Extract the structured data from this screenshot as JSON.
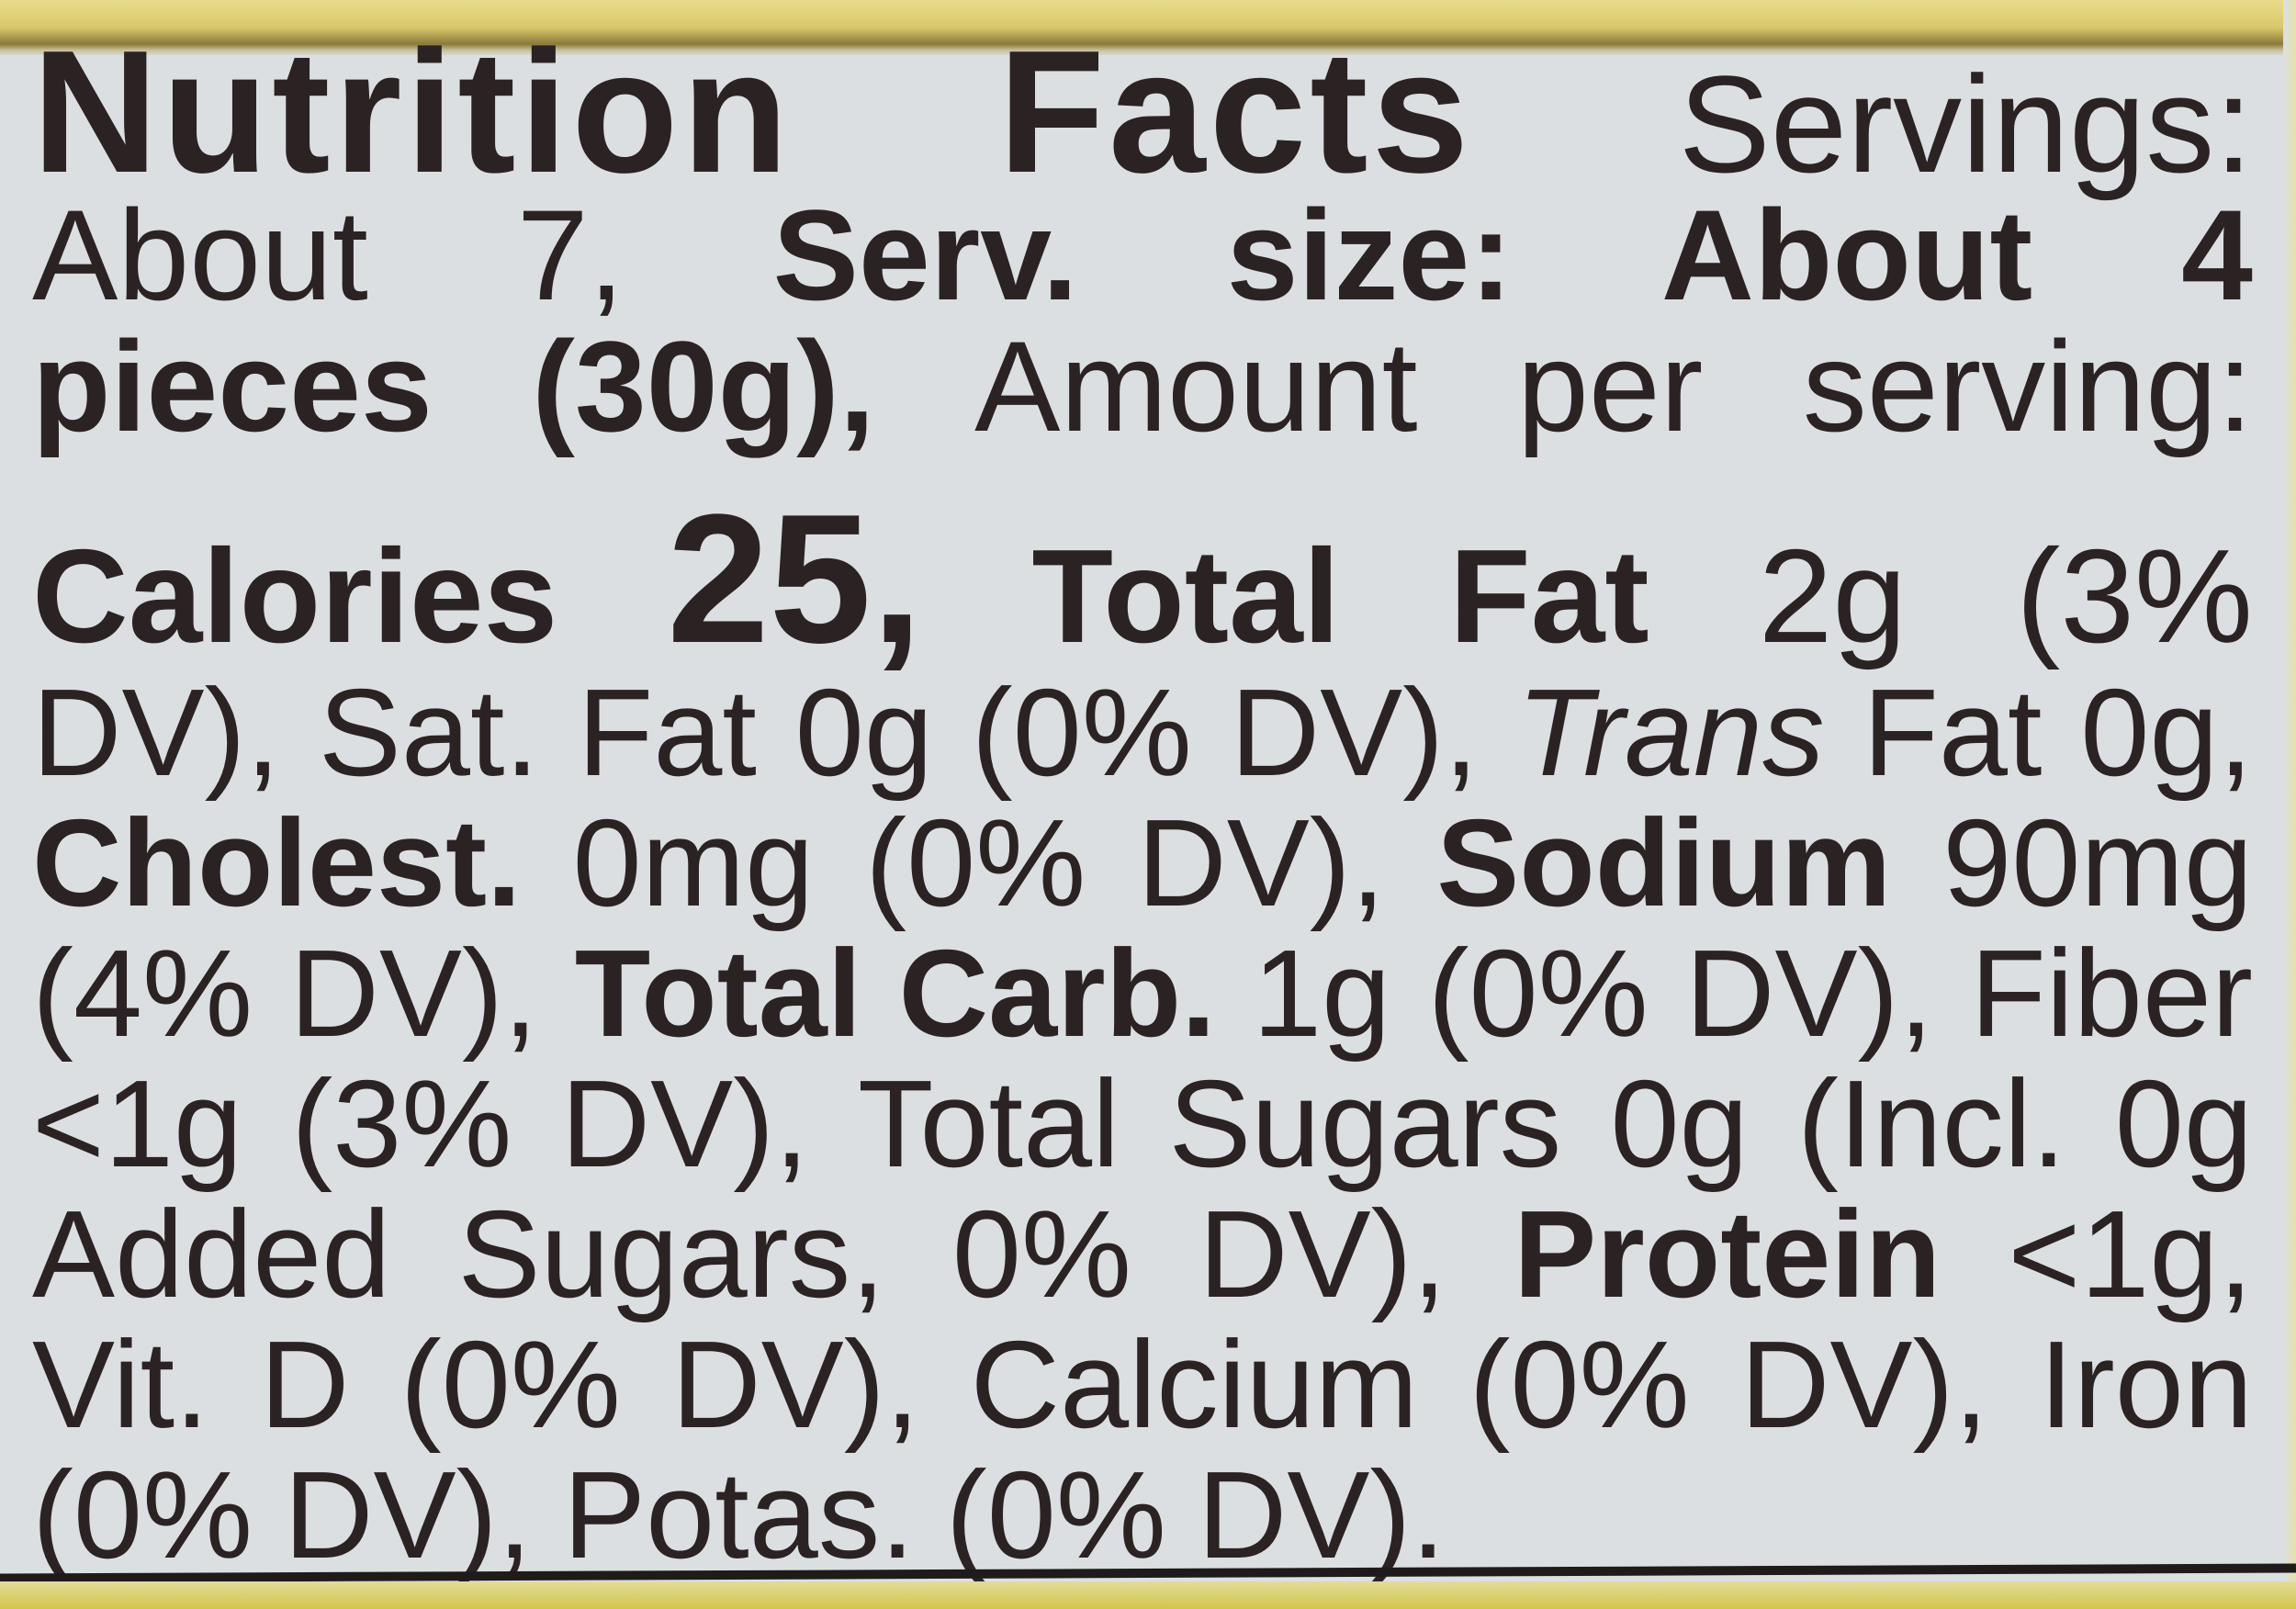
{
  "colors": {
    "text": "#2b2323",
    "background": "#dcdfe2",
    "border_yellow": "#d9c86a"
  },
  "label": {
    "lines": [
      [
        {
          "t": "Nutrition",
          "s": "bold"
        },
        {
          "t": "Facts",
          "s": "bold"
        },
        {
          "t": "Servings:",
          "s": "regular"
        }
      ],
      [
        {
          "t": "About",
          "s": "regular"
        },
        {
          "t": "7,",
          "s": "regular"
        },
        {
          "t": "Serv.",
          "s": "bold"
        },
        {
          "t": "size:",
          "s": "bold"
        },
        {
          "t": "About",
          "s": "bold"
        },
        {
          "t": "4",
          "s": "bold"
        }
      ],
      [
        {
          "t": "pieces",
          "s": "bold"
        },
        {
          "t": "(30g),",
          "s": "bold"
        },
        {
          "t": "Amount",
          "s": "regular"
        },
        {
          "t": "per",
          "s": "regular"
        },
        {
          "t": "serving:",
          "s": "regular"
        }
      ],
      [
        {
          "t": "Calories",
          "s": "bold"
        },
        {
          "t": "25,",
          "s": "hero"
        },
        {
          "t": "Total",
          "s": "bold"
        },
        {
          "t": "Fat",
          "s": "bold"
        },
        {
          "t": "2g",
          "s": "regular"
        },
        {
          "t": "(3%",
          "s": "regular"
        }
      ],
      [
        {
          "t": "DV),",
          "s": "regular"
        },
        {
          "t": "Sat.",
          "s": "regular"
        },
        {
          "t": "Fat",
          "s": "regular"
        },
        {
          "t": "0g",
          "s": "regular"
        },
        {
          "t": "(0%",
          "s": "regular"
        },
        {
          "t": "DV),",
          "s": "regular"
        },
        {
          "t": "Trans",
          "s": "italic"
        },
        {
          "t": "Fat",
          "s": "regular"
        },
        {
          "t": "0g,",
          "s": "regular"
        }
      ],
      [
        {
          "t": "Cholest.",
          "s": "bold"
        },
        {
          "t": "0mg",
          "s": "regular"
        },
        {
          "t": "(0%",
          "s": "regular"
        },
        {
          "t": "DV),",
          "s": "regular"
        },
        {
          "t": "Sodium",
          "s": "bold"
        },
        {
          "t": "90mg",
          "s": "regular"
        }
      ],
      [
        {
          "t": "(4%",
          "s": "regular"
        },
        {
          "t": "DV),",
          "s": "regular"
        },
        {
          "t": "Total",
          "s": "bold"
        },
        {
          "t": "Carb.",
          "s": "bold"
        },
        {
          "t": "1g",
          "s": "regular"
        },
        {
          "t": "(0%",
          "s": "regular"
        },
        {
          "t": "DV),",
          "s": "regular"
        },
        {
          "t": "Fiber",
          "s": "regular"
        }
      ],
      [
        {
          "t": "<1g",
          "s": "regular"
        },
        {
          "t": "(3%",
          "s": "regular"
        },
        {
          "t": "DV),",
          "s": "regular"
        },
        {
          "t": "Total",
          "s": "regular"
        },
        {
          "t": "Sugars",
          "s": "regular"
        },
        {
          "t": "0g",
          "s": "regular"
        },
        {
          "t": "(Incl.",
          "s": "regular"
        },
        {
          "t": "0g",
          "s": "regular"
        }
      ],
      [
        {
          "t": "Added",
          "s": "regular"
        },
        {
          "t": "Sugars,",
          "s": "regular"
        },
        {
          "t": "0%",
          "s": "regular"
        },
        {
          "t": "DV),",
          "s": "regular"
        },
        {
          "t": "Protein",
          "s": "bold"
        },
        {
          "t": "<1g,",
          "s": "regular"
        }
      ],
      [
        {
          "t": "Vit.",
          "s": "regular"
        },
        {
          "t": "D",
          "s": "regular"
        },
        {
          "t": "(0%",
          "s": "regular"
        },
        {
          "t": "DV),",
          "s": "regular"
        },
        {
          "t": "Calcium",
          "s": "regular"
        },
        {
          "t": "(0%",
          "s": "regular"
        },
        {
          "t": "DV),",
          "s": "regular"
        },
        {
          "t": "Iron",
          "s": "regular"
        }
      ],
      [
        {
          "t": "(0%",
          "s": "regular"
        },
        {
          "t": "DV),",
          "s": "regular"
        },
        {
          "t": "Potas.",
          "s": "regular"
        },
        {
          "t": "(0%",
          "s": "regular"
        },
        {
          "t": "DV).",
          "s": "regular"
        }
      ]
    ]
  }
}
